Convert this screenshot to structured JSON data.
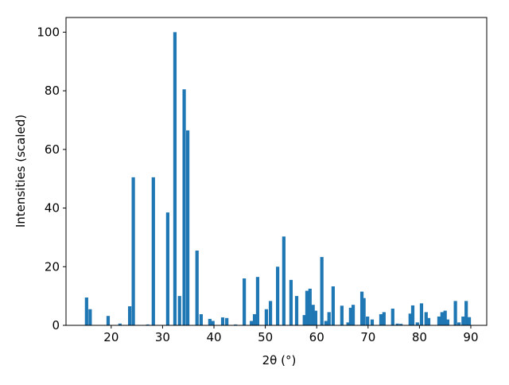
{
  "chart_data": {
    "type": "bar",
    "xlabel": "2θ (°)",
    "ylabel": "Intensities (scaled)",
    "x": [
      15.2,
      15.9,
      19.4,
      21.7,
      23.6,
      24.3,
      27.1,
      28.2,
      31.0,
      32.4,
      33.3,
      34.2,
      34.9,
      36.7,
      37.5,
      39.2,
      39.8,
      41.7,
      42.5,
      44.2,
      45.9,
      47.3,
      47.9,
      48.5,
      50.2,
      51.0,
      52.4,
      53.6,
      55.0,
      56.1,
      57.6,
      58.1,
      58.7,
      59.3,
      59.8,
      61.0,
      61.8,
      62.4,
      63.2,
      64.9,
      66.1,
      66.6,
      67.1,
      68.8,
      69.2,
      69.9,
      70.8,
      72.5,
      73.1,
      74.8,
      75.7,
      76.4,
      78.2,
      78.7,
      79.6,
      80.4,
      81.3,
      81.8,
      83.8,
      84.4,
      85.0,
      85.5,
      87.0,
      87.7,
      88.5,
      89.1,
      89.7
    ],
    "values": [
      9.5,
      5.5,
      3.2,
      0.6,
      6.5,
      50.5,
      0.3,
      50.5,
      38.5,
      100,
      10,
      80.5,
      66.5,
      25.5,
      3.8,
      2.2,
      1.5,
      2.7,
      2.5,
      0.3,
      16,
      1.5,
      3.8,
      16.5,
      5.5,
      8.3,
      20,
      30.3,
      15.5,
      10,
      3.5,
      11.8,
      12.5,
      7,
      5,
      23.3,
      1.5,
      4.5,
      13.3,
      6.7,
      1,
      6,
      7,
      11.5,
      9.3,
      3,
      2,
      3.8,
      4.5,
      5.7,
      0.6,
      0.5,
      4,
      6.8,
      1,
      7.5,
      4.5,
      2.5,
      3,
      4.5,
      5,
      2,
      8.3,
      1,
      3,
      8.3,
      2.8
    ],
    "color": "#1f77b4",
    "xlim": [
      11.2,
      93.1
    ],
    "xticks": [
      20,
      30,
      40,
      50,
      60,
      70,
      80,
      90
    ],
    "ylim": [
      0,
      105
    ],
    "yticks": [
      0,
      20,
      40,
      60,
      80,
      100
    ]
  }
}
